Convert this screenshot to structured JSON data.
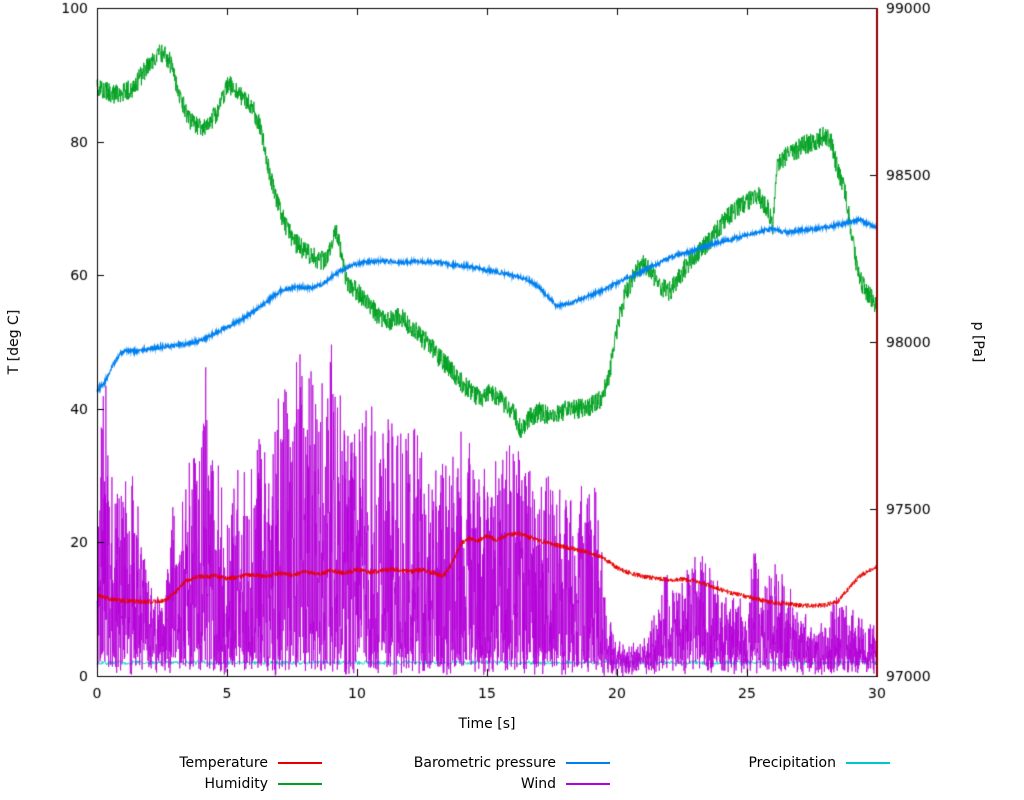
{
  "chart_data": {
    "type": "line",
    "title": "",
    "x_axis": {
      "label": "Time [s]",
      "min": 0,
      "max": 30,
      "ticks": [
        0,
        5,
        10,
        15,
        20,
        25,
        30
      ]
    },
    "y_axis_left": {
      "label": "T [deg C]",
      "min": 0,
      "max": 100,
      "ticks": [
        0,
        20,
        40,
        60,
        80,
        100
      ]
    },
    "y_axis_right": {
      "label": "p [Pa]",
      "min": 97000,
      "max": 99000,
      "ticks": [
        97000,
        97500,
        98000,
        98500,
        99000
      ]
    },
    "grid": false,
    "legend_position": "bottom",
    "draw_order": [
      4,
      3,
      0,
      1,
      2
    ],
    "annotations": [
      {
        "type": "vline",
        "x": 30,
        "color": "#8b0000"
      }
    ],
    "series": [
      {
        "name": "Temperature",
        "color": "#e60000",
        "axis": "left",
        "style": "noisy-line",
        "noise": 0.35,
        "width": 0.9,
        "samples": 2400,
        "keypoints": [
          [
            0,
            12.2
          ],
          [
            0.4,
            11.6
          ],
          [
            0.8,
            11.4
          ],
          [
            1.2,
            11.2
          ],
          [
            2,
            11.1
          ],
          [
            2.6,
            11.3
          ],
          [
            3,
            12.5
          ],
          [
            3.4,
            14.2
          ],
          [
            3.8,
            14.8
          ],
          [
            4.5,
            15.0
          ],
          [
            5,
            14.6
          ],
          [
            5.5,
            14.9
          ],
          [
            6,
            15.2
          ],
          [
            6.5,
            14.8
          ],
          [
            7,
            15.4
          ],
          [
            7.5,
            15.1
          ],
          [
            8,
            15.6
          ],
          [
            8.5,
            15.2
          ],
          [
            9,
            15.8
          ],
          [
            9.5,
            15.4
          ],
          [
            10,
            15.9
          ],
          [
            10.5,
            15.5
          ],
          [
            11,
            15.8
          ],
          [
            11.5,
            16.0
          ],
          [
            12,
            15.6
          ],
          [
            12.5,
            15.9
          ],
          [
            13,
            15.4
          ],
          [
            13.3,
            14.9
          ],
          [
            13.6,
            16.5
          ],
          [
            14,
            19.8
          ],
          [
            14.3,
            20.6
          ],
          [
            14.6,
            20.2
          ],
          [
            15,
            20.9
          ],
          [
            15.4,
            20.4
          ],
          [
            15.8,
            21.1
          ],
          [
            16.2,
            21.4
          ],
          [
            16.6,
            20.8
          ],
          [
            17,
            20.3
          ],
          [
            17.5,
            19.8
          ],
          [
            18,
            19.3
          ],
          [
            18.5,
            18.9
          ],
          [
            19,
            18.4
          ],
          [
            19.5,
            17.6
          ],
          [
            20,
            16.2
          ],
          [
            20.5,
            15.4
          ],
          [
            21,
            14.9
          ],
          [
            21.5,
            14.6
          ],
          [
            22,
            14.4
          ],
          [
            22.5,
            14.5
          ],
          [
            23,
            14.3
          ],
          [
            23.5,
            13.6
          ],
          [
            24,
            12.9
          ],
          [
            24.5,
            12.3
          ],
          [
            25,
            11.9
          ],
          [
            25.5,
            11.4
          ],
          [
            26,
            11.0
          ],
          [
            26.5,
            10.8
          ],
          [
            27,
            10.6
          ],
          [
            27.5,
            10.5
          ],
          [
            28,
            10.6
          ],
          [
            28.5,
            11.2
          ],
          [
            29,
            13.5
          ],
          [
            29.3,
            14.8
          ],
          [
            29.6,
            15.6
          ],
          [
            30,
            16.4
          ]
        ]
      },
      {
        "name": "Humidity",
        "color": "#00a020",
        "axis": "left",
        "style": "noisy-line",
        "noise": 1.5,
        "width": 0.9,
        "samples": 2600,
        "keypoints": [
          [
            0,
            88
          ],
          [
            0.3,
            87.5
          ],
          [
            0.7,
            87
          ],
          [
            1,
            87.5
          ],
          [
            1.4,
            88
          ],
          [
            1.8,
            90.5
          ],
          [
            2.2,
            92.5
          ],
          [
            2.5,
            93.3
          ],
          [
            2.8,
            92
          ],
          [
            3.1,
            88
          ],
          [
            3.4,
            84.5
          ],
          [
            3.7,
            82.5
          ],
          [
            4,
            82
          ],
          [
            4.3,
            83
          ],
          [
            4.6,
            84
          ],
          [
            5,
            88.5
          ],
          [
            5.3,
            88
          ],
          [
            5.6,
            86.5
          ],
          [
            6,
            85
          ],
          [
            6.3,
            82
          ],
          [
            6.6,
            76
          ],
          [
            7,
            70
          ],
          [
            7.3,
            67
          ],
          [
            7.6,
            65
          ],
          [
            8,
            63.5
          ],
          [
            8.4,
            62.5
          ],
          [
            8.8,
            62
          ],
          [
            9,
            64
          ],
          [
            9.2,
            67
          ],
          [
            9.4,
            63
          ],
          [
            9.6,
            59
          ],
          [
            10,
            57.5
          ],
          [
            10.4,
            56
          ],
          [
            10.8,
            54
          ],
          [
            11.2,
            53
          ],
          [
            11.6,
            54
          ],
          [
            12,
            52.5
          ],
          [
            12.4,
            51
          ],
          [
            12.8,
            49.5
          ],
          [
            13.2,
            47.5
          ],
          [
            13.6,
            46
          ],
          [
            14,
            44
          ],
          [
            14.4,
            42.5
          ],
          [
            14.8,
            41.5
          ],
          [
            15.2,
            42.5
          ],
          [
            15.6,
            41
          ],
          [
            16,
            39.5
          ],
          [
            16.3,
            36.8
          ],
          [
            16.6,
            38.5
          ],
          [
            17,
            39.5
          ],
          [
            17.4,
            39
          ],
          [
            17.8,
            39.5
          ],
          [
            18.2,
            40
          ],
          [
            18.6,
            40
          ],
          [
            19,
            40.5
          ],
          [
            19.4,
            41.5
          ],
          [
            19.7,
            45
          ],
          [
            20,
            52
          ],
          [
            20.3,
            57
          ],
          [
            20.6,
            59.5
          ],
          [
            21,
            62
          ],
          [
            21.3,
            60.5
          ],
          [
            21.6,
            58.5
          ],
          [
            22,
            57.5
          ],
          [
            22.3,
            59
          ],
          [
            22.6,
            61
          ],
          [
            23,
            63
          ],
          [
            23.4,
            64.5
          ],
          [
            23.8,
            66.5
          ],
          [
            24.2,
            68.5
          ],
          [
            24.6,
            70
          ],
          [
            25,
            71
          ],
          [
            25.4,
            72
          ],
          [
            25.8,
            70
          ],
          [
            26,
            67.5
          ],
          [
            26.15,
            76
          ],
          [
            26.4,
            77.5
          ],
          [
            26.8,
            78.5
          ],
          [
            27.2,
            79.5
          ],
          [
            27.6,
            80
          ],
          [
            28,
            81
          ],
          [
            28.2,
            80.5
          ],
          [
            28.4,
            77
          ],
          [
            28.6,
            74.5
          ],
          [
            28.8,
            72
          ],
          [
            29,
            67
          ],
          [
            29.2,
            62
          ],
          [
            29.4,
            59
          ],
          [
            29.6,
            57.5
          ],
          [
            30,
            55.5
          ]
        ]
      },
      {
        "name": "Barometric pressure",
        "color": "#0080f0",
        "axis": "right",
        "style": "noisy-line",
        "noise": 6,
        "width": 1.1,
        "samples": 2600,
        "keypoints": [
          [
            0,
            97855
          ],
          [
            0.3,
            97880
          ],
          [
            0.6,
            97930
          ],
          [
            0.9,
            97965
          ],
          [
            1.2,
            97975
          ],
          [
            1.6,
            97972
          ],
          [
            2,
            97980
          ],
          [
            2.5,
            97985
          ],
          [
            3,
            97990
          ],
          [
            3.5,
            97995
          ],
          [
            4,
            98005
          ],
          [
            4.5,
            98025
          ],
          [
            5,
            98045
          ],
          [
            5.5,
            98065
          ],
          [
            6,
            98090
          ],
          [
            6.5,
            98120
          ],
          [
            7,
            98150
          ],
          [
            7.4,
            98160
          ],
          [
            7.8,
            98165
          ],
          [
            8.2,
            98162
          ],
          [
            8.6,
            98170
          ],
          [
            9,
            98195
          ],
          [
            9.4,
            98215
          ],
          [
            9.8,
            98230
          ],
          [
            10.2,
            98238
          ],
          [
            10.6,
            98240
          ],
          [
            11,
            98242
          ],
          [
            11.4,
            98240
          ],
          [
            11.8,
            98238
          ],
          [
            12.2,
            98242
          ],
          [
            12.6,
            98240
          ],
          [
            13,
            98238
          ],
          [
            13.4,
            98235
          ],
          [
            13.8,
            98230
          ],
          [
            14.2,
            98228
          ],
          [
            14.6,
            98222
          ],
          [
            15,
            98215
          ],
          [
            15.4,
            98210
          ],
          [
            15.8,
            98202
          ],
          [
            16.2,
            98195
          ],
          [
            16.6,
            98185
          ],
          [
            17,
            98165
          ],
          [
            17.4,
            98130
          ],
          [
            17.7,
            98108
          ],
          [
            18,
            98112
          ],
          [
            18.4,
            98122
          ],
          [
            18.8,
            98135
          ],
          [
            19.2,
            98148
          ],
          [
            19.6,
            98160
          ],
          [
            20,
            98178
          ],
          [
            20.4,
            98192
          ],
          [
            20.8,
            98205
          ],
          [
            21.2,
            98222
          ],
          [
            21.6,
            98235
          ],
          [
            22,
            98252
          ],
          [
            22.4,
            98262
          ],
          [
            22.8,
            98270
          ],
          [
            23.2,
            98282
          ],
          [
            23.6,
            98292
          ],
          [
            24,
            98300
          ],
          [
            24.4,
            98308
          ],
          [
            24.8,
            98318
          ],
          [
            25.2,
            98325
          ],
          [
            25.6,
            98332
          ],
          [
            26,
            98340
          ],
          [
            26.3,
            98330
          ],
          [
            26.6,
            98328
          ],
          [
            27,
            98335
          ],
          [
            27.4,
            98338
          ],
          [
            27.8,
            98340
          ],
          [
            28.2,
            98345
          ],
          [
            28.6,
            98352
          ],
          [
            29,
            98360
          ],
          [
            29.3,
            98368
          ],
          [
            29.6,
            98355
          ],
          [
            30,
            98345
          ]
        ]
      },
      {
        "name": "Wind",
        "color": "#b400d8",
        "axis": "left",
        "style": "spikes",
        "base": 3,
        "power": 1.7,
        "width": 0.75,
        "samples": 3600,
        "envelope": [
          [
            0,
            30
          ],
          [
            0.3,
            48
          ],
          [
            0.5,
            30
          ],
          [
            1,
            30
          ],
          [
            1.5,
            28
          ],
          [
            2,
            12
          ],
          [
            2.5,
            10
          ],
          [
            3,
            25
          ],
          [
            3.5,
            30
          ],
          [
            4,
            35
          ],
          [
            4.2,
            46
          ],
          [
            4.5,
            30
          ],
          [
            5,
            28
          ],
          [
            5.5,
            30
          ],
          [
            6,
            32
          ],
          [
            6.5,
            35
          ],
          [
            7,
            40
          ],
          [
            7.5,
            44
          ],
          [
            8,
            48
          ],
          [
            8.5,
            42
          ],
          [
            9,
            48
          ],
          [
            9.5,
            38
          ],
          [
            10,
            36
          ],
          [
            10.5,
            40
          ],
          [
            11,
            38
          ],
          [
            11.5,
            36
          ],
          [
            12,
            38
          ],
          [
            12.5,
            35
          ],
          [
            13,
            30
          ],
          [
            13.5,
            32
          ],
          [
            14,
            36
          ],
          [
            14.5,
            30
          ],
          [
            15,
            28
          ],
          [
            15.5,
            30
          ],
          [
            16,
            35
          ],
          [
            16.5,
            30
          ],
          [
            17,
            28
          ],
          [
            17.5,
            30
          ],
          [
            18,
            25
          ],
          [
            18.5,
            28
          ],
          [
            19,
            30
          ],
          [
            19.3,
            25
          ],
          [
            19.6,
            8
          ],
          [
            20,
            3
          ],
          [
            20.5,
            2
          ],
          [
            21,
            3
          ],
          [
            21.5,
            8
          ],
          [
            22,
            15
          ],
          [
            22.5,
            12
          ],
          [
            23,
            18
          ],
          [
            23.5,
            15
          ],
          [
            24,
            12
          ],
          [
            24.5,
            10
          ],
          [
            25,
            8
          ],
          [
            25.3,
            22
          ],
          [
            25.6,
            10
          ],
          [
            26,
            15
          ],
          [
            26.5,
            12
          ],
          [
            27,
            8
          ],
          [
            27.5,
            6
          ],
          [
            28,
            8
          ],
          [
            28.5,
            10
          ],
          [
            29,
            8
          ],
          [
            29.5,
            6
          ],
          [
            30,
            8
          ]
        ]
      },
      {
        "name": "Precipitation",
        "color": "#00c8c8",
        "axis": "left",
        "style": "noisy-line",
        "noise": 0.3,
        "width": 0.9,
        "samples": 1200,
        "keypoints": [
          [
            0,
            2
          ],
          [
            30,
            2
          ]
        ]
      }
    ]
  }
}
